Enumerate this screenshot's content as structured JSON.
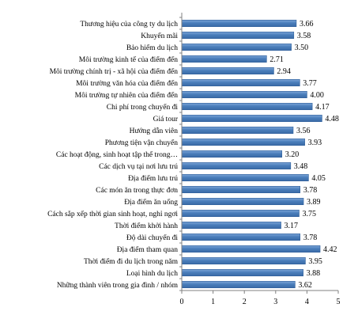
{
  "chart_data": {
    "type": "bar",
    "orientation": "horizontal",
    "categories": [
      "Thương hiệu của công ty du lịch",
      "Khuyến mãi",
      "Bảo hiểm du lịch",
      "Môi trường kinh tế của điểm đến",
      "Môi trường chính trị - xã hội của điểm đến",
      "Môi trường văn hóa của điểm đến",
      "Môi trường tự nhiên của điểm đến",
      "Chi phí trong chuyến đi",
      "Giá tour",
      "Hướng dẫn viên",
      "Phương tiện vận chuyển",
      "Các hoạt động, sinh hoạt tập thể trong…",
      "Các dịch vụ tại nơi lưu trú",
      "Địa điểm lưu trú",
      "Các món ăn trong thực đơn",
      "Địa điểm ăn uống",
      "Cách sắp xếp thời gian sinh hoạt, nghỉ ngơi",
      "Thời điểm khởi hành",
      "Độ dài chuyến đi",
      "Địa điểm tham quan",
      "Thời điểm đi du lịch trong năm",
      "Loại hình du lịch",
      "Những thành viên trong gia đình / nhóm"
    ],
    "values": [
      3.66,
      3.58,
      3.5,
      2.71,
      2.94,
      3.77,
      4.0,
      4.17,
      4.48,
      3.56,
      3.93,
      3.2,
      3.48,
      4.05,
      3.78,
      3.89,
      3.75,
      3.17,
      3.78,
      4.42,
      3.95,
      3.88,
      3.62
    ],
    "value_labels": [
      "3.66",
      "3.58",
      "3.50",
      "2.71",
      "2.94",
      "3.77",
      "4.00",
      "4.17",
      "4.48",
      "3.56",
      "3.93",
      "3.20",
      "3.48",
      "4.05",
      "3.78",
      "3.89",
      "3.75",
      "3.17",
      "3.78",
      "4.42",
      "3.95",
      "3.88",
      "3.62"
    ],
    "xlim": [
      0,
      5
    ],
    "xticks": [
      "0",
      "1",
      "2",
      "3",
      "4",
      "5"
    ],
    "title": "",
    "xlabel": "",
    "ylabel": "",
    "grid": false,
    "legend": "none",
    "bar_color": "#4a7ebb",
    "bar_edge_color": "#2f5f9a"
  }
}
